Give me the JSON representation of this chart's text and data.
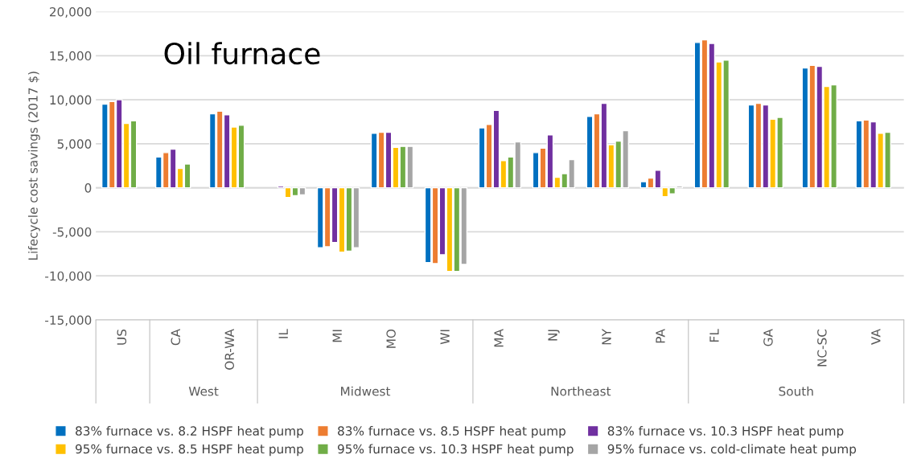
{
  "chart_data": {
    "type": "bar",
    "title": "Oil furnace",
    "ylabel": "Lifecycle cost savings (2017 $)",
    "categories": [
      "US",
      "CA",
      "OR-WA",
      "IL",
      "MI",
      "MO",
      "WI",
      "MA",
      "NJ",
      "NY",
      "PA",
      "FL",
      "GA",
      "NC-SC",
      "VA"
    ],
    "annotations": [
      "West",
      "Midwest",
      "Northeast",
      "South"
    ],
    "series": [
      {
        "name": "83% furnace vs. 8.2 HSPF heat pump",
        "color": "#0070c0",
        "values": [
          9500,
          3500,
          8400,
          null,
          -6800,
          6200,
          -8500,
          6800,
          4000,
          8100,
          700,
          16500,
          9400,
          13600,
          7600
        ]
      },
      {
        "name": "83% furnace vs. 8.5 HSPF heat pump",
        "color": "#ed7d31",
        "values": [
          9800,
          4000,
          8700,
          null,
          -6700,
          6300,
          -8600,
          7200,
          4500,
          8400,
          1100,
          16800,
          9600,
          13900,
          7700
        ]
      },
      {
        "name": "83% furnace vs. 10.3 HSPF heat pump",
        "color": "#7030a0",
        "values": [
          10000,
          4400,
          8300,
          200,
          -6200,
          6300,
          -7600,
          8800,
          6000,
          9600,
          2000,
          16400,
          9400,
          13800,
          7500
        ]
      },
      {
        "name": "95% furnace vs. 8.5 HSPF heat pump",
        "color": "#ffc000",
        "values": [
          7300,
          2200,
          6900,
          -1100,
          -7300,
          4600,
          -9500,
          3100,
          1200,
          4900,
          -1000,
          14300,
          7800,
          11500,
          6200
        ]
      },
      {
        "name": "95% furnace vs. 10.3 HSPF heat pump",
        "color": "#70ad47",
        "values": [
          7600,
          2700,
          7100,
          -900,
          -7200,
          4700,
          -9500,
          3500,
          1600,
          5300,
          -700,
          14500,
          8000,
          11700,
          6300
        ]
      },
      {
        "name": "95% furnace vs. cold-climate heat pump",
        "color": "#a5a5a5",
        "values": [
          null,
          null,
          null,
          -800,
          -6800,
          4700,
          -8700,
          5200,
          3200,
          6500,
          200,
          null,
          null,
          null,
          null
        ]
      }
    ],
    "ylim": [
      -15000,
      20000
    ],
    "yticks": [
      {
        "value": -15000,
        "label": "-15,000"
      },
      {
        "value": -10000,
        "label": "-10,000"
      },
      {
        "value": -5000,
        "label": "-5,000"
      },
      0,
      {
        "value": 5000,
        "label": "5,000"
      },
      {
        "value": 10000,
        "label": "10,000"
      },
      {
        "value": 15000,
        "label": "15,000"
      },
      {
        "value": 20000,
        "label": "20,000"
      }
    ],
    "grid": "y",
    "legend": "bottom"
  }
}
